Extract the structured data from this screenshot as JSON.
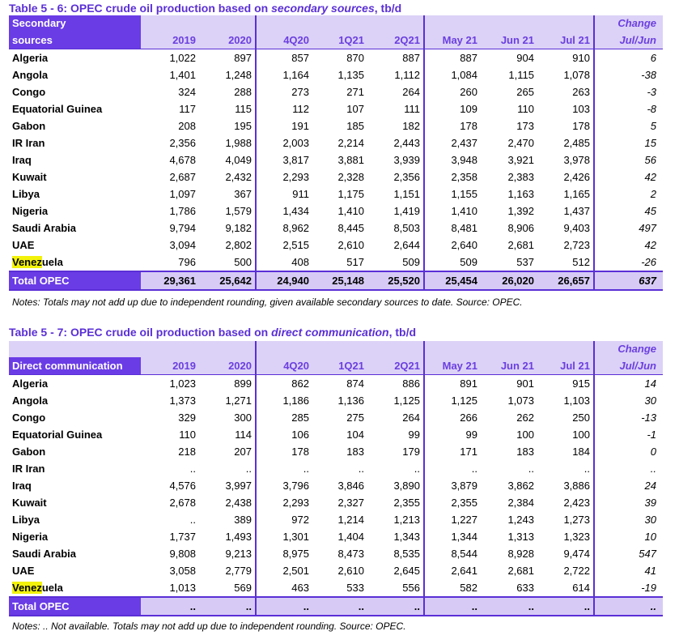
{
  "table1": {
    "title_pre": "Table 5 - 6: OPEC crude oil production based on ",
    "title_italic": "secondary sources",
    "title_post": ", tb/d",
    "header_name_top": "Secondary",
    "header_name_bottom": "sources",
    "change_top": "Change",
    "columns": [
      "2019",
      "2020",
      "4Q20",
      "1Q21",
      "2Q21",
      "May 21",
      "Jun 21",
      "Jul 21",
      "Jul/Jun"
    ],
    "rows": [
      {
        "name": "Algeria",
        "values": [
          "1,022",
          "897",
          "857",
          "870",
          "887",
          "887",
          "904",
          "910",
          "6"
        ]
      },
      {
        "name": "Angola",
        "values": [
          "1,401",
          "1,248",
          "1,164",
          "1,135",
          "1,112",
          "1,084",
          "1,115",
          "1,078",
          "-38"
        ]
      },
      {
        "name": "Congo",
        "values": [
          "324",
          "288",
          "273",
          "271",
          "264",
          "260",
          "265",
          "263",
          "-3"
        ]
      },
      {
        "name": "Equatorial Guinea",
        "values": [
          "117",
          "115",
          "112",
          "107",
          "111",
          "109",
          "110",
          "103",
          "-8"
        ]
      },
      {
        "name": "Gabon",
        "values": [
          "208",
          "195",
          "191",
          "185",
          "182",
          "178",
          "173",
          "178",
          "5"
        ]
      },
      {
        "name": "IR Iran",
        "values": [
          "2,356",
          "1,988",
          "2,003",
          "2,214",
          "2,443",
          "2,437",
          "2,470",
          "2,485",
          "15"
        ]
      },
      {
        "name": "Iraq",
        "values": [
          "4,678",
          "4,049",
          "3,817",
          "3,881",
          "3,939",
          "3,948",
          "3,921",
          "3,978",
          "56"
        ]
      },
      {
        "name": "Kuwait",
        "values": [
          "2,687",
          "2,432",
          "2,293",
          "2,328",
          "2,356",
          "2,358",
          "2,383",
          "2,426",
          "42"
        ]
      },
      {
        "name": "Libya",
        "values": [
          "1,097",
          "367",
          "911",
          "1,175",
          "1,151",
          "1,155",
          "1,163",
          "1,165",
          "2"
        ]
      },
      {
        "name": "Nigeria",
        "values": [
          "1,786",
          "1,579",
          "1,434",
          "1,410",
          "1,419",
          "1,410",
          "1,392",
          "1,437",
          "45"
        ]
      },
      {
        "name": "Saudi Arabia",
        "values": [
          "9,794",
          "9,182",
          "8,962",
          "8,445",
          "8,503",
          "8,481",
          "8,906",
          "9,403",
          "497"
        ]
      },
      {
        "name": "UAE",
        "values": [
          "3,094",
          "2,802",
          "2,515",
          "2,610",
          "2,644",
          "2,640",
          "2,681",
          "2,723",
          "42"
        ]
      }
    ],
    "venezuela": {
      "name_hl": "Venez",
      "name_rest": "uela",
      "values": [
        "796",
        "500",
        "408",
        "517",
        "509",
        "509",
        "537",
        "512",
        "-26"
      ]
    },
    "total": {
      "name": "Total  OPEC",
      "values": [
        "29,361",
        "25,642",
        "24,940",
        "25,148",
        "25,520",
        "25,454",
        "26,020",
        "26,657",
        "637"
      ]
    },
    "note": "Notes: Totals may not add up due to independent rounding, given available secondary sources to date. Source: OPEC."
  },
  "table2": {
    "title_pre": "Table 5 - 7: OPEC crude oil production based on ",
    "title_italic": "direct communication",
    "title_post": ", tb/d",
    "header_name": "Direct communication",
    "change_top": "Change",
    "columns": [
      "2019",
      "2020",
      "4Q20",
      "1Q21",
      "2Q21",
      "May 21",
      "Jun 21",
      "Jul 21",
      "Jul/Jun"
    ],
    "rows": [
      {
        "name": "Algeria",
        "values": [
          "1,023",
          "899",
          "862",
          "874",
          "886",
          "891",
          "901",
          "915",
          "14"
        ]
      },
      {
        "name": "Angola",
        "values": [
          "1,373",
          "1,271",
          "1,186",
          "1,136",
          "1,125",
          "1,125",
          "1,073",
          "1,103",
          "30"
        ]
      },
      {
        "name": "Congo",
        "values": [
          "329",
          "300",
          "285",
          "275",
          "264",
          "266",
          "262",
          "250",
          "-13"
        ]
      },
      {
        "name": "Equatorial Guinea",
        "values": [
          "110",
          "114",
          "106",
          "104",
          "99",
          "99",
          "100",
          "100",
          "-1"
        ]
      },
      {
        "name": "Gabon",
        "values": [
          "218",
          "207",
          "178",
          "183",
          "179",
          "171",
          "183",
          "184",
          "0"
        ]
      },
      {
        "name": "IR Iran",
        "values": [
          "..",
          "..",
          "..",
          "..",
          "..",
          "..",
          "..",
          "..",
          ".."
        ]
      },
      {
        "name": "Iraq",
        "values": [
          "4,576",
          "3,997",
          "3,796",
          "3,846",
          "3,890",
          "3,879",
          "3,862",
          "3,886",
          "24"
        ]
      },
      {
        "name": "Kuwait",
        "values": [
          "2,678",
          "2,438",
          "2,293",
          "2,327",
          "2,355",
          "2,355",
          "2,384",
          "2,423",
          "39"
        ]
      },
      {
        "name": "Libya",
        "values": [
          "..",
          "389",
          "972",
          "1,214",
          "1,213",
          "1,227",
          "1,243",
          "1,273",
          "30"
        ]
      },
      {
        "name": "Nigeria",
        "values": [
          "1,737",
          "1,493",
          "1,301",
          "1,404",
          "1,343",
          "1,344",
          "1,313",
          "1,323",
          "10"
        ]
      },
      {
        "name": "Saudi Arabia",
        "values": [
          "9,808",
          "9,213",
          "8,975",
          "8,473",
          "8,535",
          "8,544",
          "8,928",
          "9,474",
          "547"
        ]
      },
      {
        "name": "UAE",
        "values": [
          "3,058",
          "2,779",
          "2,501",
          "2,610",
          "2,645",
          "2,641",
          "2,681",
          "2,722",
          "41"
        ]
      }
    ],
    "venezuela": {
      "name_hl": "Venez",
      "name_rest": "uela",
      "values": [
        "1,013",
        "569",
        "463",
        "533",
        "556",
        "582",
        "633",
        "614",
        "-19"
      ]
    },
    "total": {
      "name": "Total  OPEC",
      "values": [
        "..",
        "..",
        "..",
        "..",
        "..",
        "..",
        "..",
        "..",
        ".."
      ]
    },
    "note": "Notes:  .. Not available. Totals may not add up due to independent rounding. Source: OPEC."
  }
}
